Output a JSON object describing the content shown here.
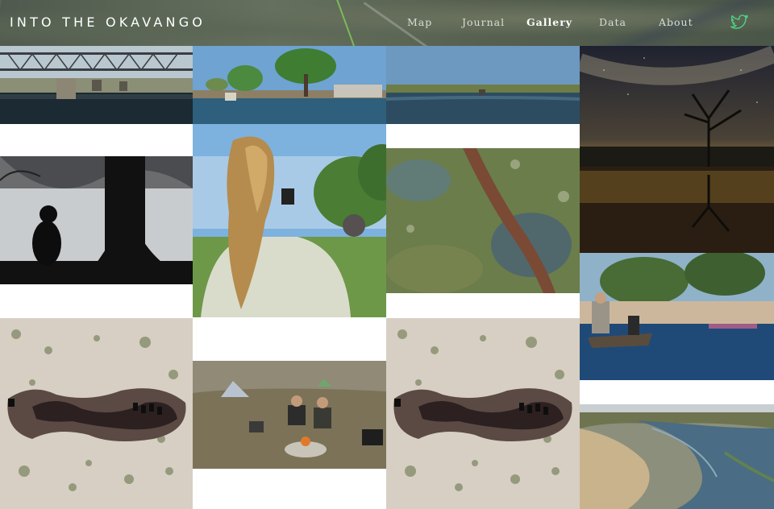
{
  "site": {
    "title": "INTO THE OKAVANGO"
  },
  "nav": {
    "items": [
      {
        "label": "Map"
      },
      {
        "label": "Journal"
      },
      {
        "label": "Gallery",
        "active": true
      },
      {
        "label": "Data"
      },
      {
        "label": "About"
      }
    ],
    "social_icon": "twitter-icon"
  },
  "colors": {
    "accent_twitter": "#4cd185",
    "nav_text": "#d9ddd6",
    "nav_active": "#ffffff"
  },
  "gallery": {
    "photos": [
      {
        "subject": "bridge-river-mokoro"
      },
      {
        "subject": "trees-river-mokoros"
      },
      {
        "subject": "river-channel-mokoro"
      },
      {
        "subject": "starry-night-tree-reflection"
      },
      {
        "subject": "baboon-silhouette-tree"
      },
      {
        "subject": "photographer-elephant"
      },
      {
        "subject": "aerial-river-channel"
      },
      {
        "subject": "mokoro-poler-river"
      },
      {
        "subject": "aerial-waterhole-elephants"
      },
      {
        "subject": "campfire-tents"
      },
      {
        "subject": "aerial-waterhole-elephants"
      },
      {
        "subject": "aerial-river-sandbanks"
      }
    ]
  }
}
